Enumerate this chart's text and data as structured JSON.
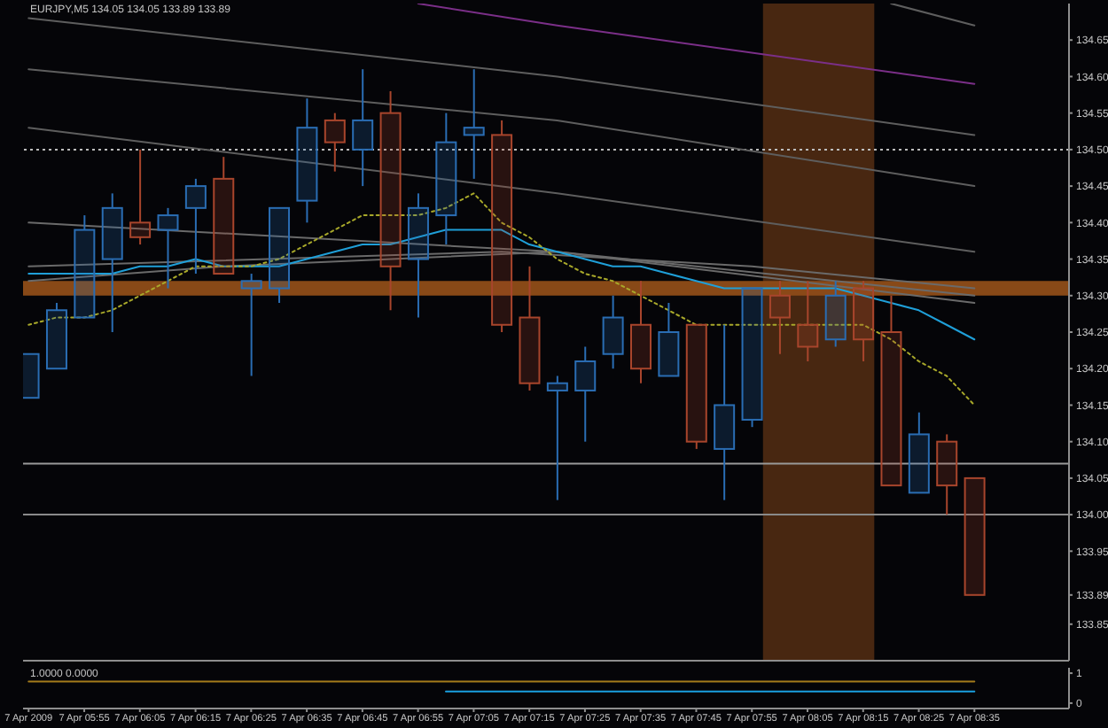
{
  "chart_data": [
    {
      "type": "candlestick",
      "title": "EURJPY,M5 134.05 134.05 133.89 133.89",
      "x": [
        "2009-04-07T05:45",
        "2009-04-07T05:50",
        "2009-04-07T05:55",
        "2009-04-07T06:00",
        "2009-04-07T06:05",
        "2009-04-07T06:10",
        "2009-04-07T06:15",
        "2009-04-07T06:20",
        "2009-04-07T06:25",
        "2009-04-07T06:30",
        "2009-04-07T06:35",
        "2009-04-07T06:40",
        "2009-04-07T06:45",
        "2009-04-07T06:50",
        "2009-04-07T06:55",
        "2009-04-07T07:00",
        "2009-04-07T07:05",
        "2009-04-07T07:10",
        "2009-04-07T07:15",
        "2009-04-07T07:20",
        "2009-04-07T07:25",
        "2009-04-07T07:30",
        "2009-04-07T07:35",
        "2009-04-07T07:40",
        "2009-04-07T07:45",
        "2009-04-07T07:50",
        "2009-04-07T07:55",
        "2009-04-07T08:00",
        "2009-04-07T08:05",
        "2009-04-07T08:10",
        "2009-04-07T08:15",
        "2009-04-07T08:20",
        "2009-04-07T08:25",
        "2009-04-07T08:30",
        "2009-04-07T08:35"
      ],
      "ohlc": [
        [
          134.16,
          134.22,
          134.16,
          134.22
        ],
        [
          134.2,
          134.29,
          134.2,
          134.28
        ],
        [
          134.27,
          134.41,
          134.27,
          134.39
        ],
        [
          134.35,
          134.44,
          134.25,
          134.42
        ],
        [
          134.4,
          134.5,
          134.37,
          134.38
        ],
        [
          134.39,
          134.42,
          134.31,
          134.41
        ],
        [
          134.42,
          134.46,
          134.33,
          134.45
        ],
        [
          134.46,
          134.49,
          134.33,
          134.33
        ],
        [
          134.31,
          134.33,
          134.19,
          134.32
        ],
        [
          134.31,
          134.42,
          134.29,
          134.42
        ],
        [
          134.43,
          134.57,
          134.4,
          134.53
        ],
        [
          134.54,
          134.55,
          134.47,
          134.51
        ],
        [
          134.5,
          134.61,
          134.45,
          134.54
        ],
        [
          134.55,
          134.58,
          134.28,
          134.34
        ],
        [
          134.35,
          134.44,
          134.27,
          134.42
        ],
        [
          134.41,
          134.55,
          134.37,
          134.51
        ],
        [
          134.52,
          134.61,
          134.46,
          134.53
        ],
        [
          134.52,
          134.54,
          134.25,
          134.26
        ],
        [
          134.27,
          134.34,
          134.17,
          134.18
        ],
        [
          134.17,
          134.19,
          134.02,
          134.18
        ],
        [
          134.17,
          134.23,
          134.1,
          134.21
        ],
        [
          134.22,
          134.3,
          134.2,
          134.27
        ],
        [
          134.26,
          134.32,
          134.18,
          134.2
        ],
        [
          134.19,
          134.29,
          134.19,
          134.25
        ],
        [
          134.26,
          134.26,
          134.09,
          134.1
        ],
        [
          134.09,
          134.26,
          134.02,
          134.15
        ],
        [
          134.13,
          134.31,
          134.12,
          134.31
        ],
        [
          134.3,
          134.32,
          134.22,
          134.27
        ],
        [
          134.26,
          134.32,
          134.21,
          134.23
        ],
        [
          134.24,
          134.32,
          134.23,
          134.3
        ],
        [
          134.31,
          134.32,
          134.21,
          134.24
        ],
        [
          134.25,
          134.3,
          134.04,
          134.04
        ],
        [
          134.03,
          134.14,
          134.03,
          134.11
        ],
        [
          134.1,
          134.11,
          134,
          134.04
        ],
        [
          134.05,
          134.05,
          133.89,
          133.89
        ]
      ],
      "colors": [
        "#2a6db3",
        "#2a6db3",
        "#2a6db3",
        "#2a6db3",
        "#a8452c",
        "#2a6db3",
        "#2a6db3",
        "#a8452c",
        "#2a6db3",
        "#2a6db3",
        "#2a6db3",
        "#a8452c",
        "#2a6db3",
        "#a8452c",
        "#2a6db3",
        "#2a6db3",
        "#2a6db3",
        "#a8452c",
        "#a8452c",
        "#2a6db3",
        "#2a6db3",
        "#2a6db3",
        "#a8452c",
        "#2a6db3",
        "#a8452c",
        "#2a6db3",
        "#2a6db3",
        "#a8452c",
        "#a8452c",
        "#2a6db3",
        "#a8452c",
        "#a8452c",
        "#2a6db3",
        "#a8452c",
        "#a8452c"
      ],
      "series": [
        {
          "type": "line",
          "color": "#5e5e5e",
          "x": [
            "2009-04-07T05:45",
            "2009-04-07T07:20",
            "2009-04-07T08:35"
          ],
          "values": [
            134.68,
            134.6,
            134.52
          ]
        },
        {
          "type": "line",
          "color": "#5e5e5e",
          "x": [
            "2009-04-07T05:45",
            "2009-04-07T07:20",
            "2009-04-07T08:35"
          ],
          "values": [
            134.61,
            134.54,
            134.45
          ]
        },
        {
          "type": "line",
          "color": "#5e5e5e",
          "x": [
            "2009-04-07T05:45",
            "2009-04-07T07:20",
            "2009-04-07T08:35"
          ],
          "values": [
            134.53,
            134.44,
            134.36
          ]
        },
        {
          "type": "line",
          "color": "#7b2f88",
          "x": [
            "2009-04-07T06:55",
            "2009-04-07T07:20",
            "2009-04-07T08:35"
          ],
          "values": [
            134.7,
            134.67,
            134.59
          ]
        },
        {
          "type": "line",
          "color": "#5e5e5e",
          "x": [
            "2009-04-07T08:20",
            "2009-04-07T08:35"
          ],
          "values": [
            134.7,
            134.67
          ]
        },
        {
          "type": "line",
          "color": "#6a6a6a",
          "x": [
            "2009-04-07T05:45",
            "2009-04-07T07:20",
            "2009-04-07T08:35"
          ],
          "values": [
            134.4,
            134.36,
            134.29
          ]
        },
        {
          "type": "line",
          "color": "#6a6a6a",
          "x": [
            "2009-04-07T05:45",
            "2009-04-07T07:10",
            "2009-04-07T07:55",
            "2009-04-07T08:35"
          ],
          "values": [
            134.34,
            134.36,
            134.34,
            134.31
          ]
        },
        {
          "type": "line",
          "color": "#6a6a6a",
          "x": [
            "2009-04-07T05:45",
            "2009-04-07T06:20",
            "2009-04-07T07:20",
            "2009-04-07T08:35"
          ],
          "values": [
            134.32,
            134.34,
            134.36,
            134.3
          ]
        },
        {
          "type": "line",
          "color": "#1f9fd8",
          "values": [
            134.33,
            134.33,
            134.33,
            134.33,
            134.34,
            134.34,
            134.35,
            134.34,
            134.34,
            134.34,
            134.35,
            134.36,
            134.37,
            134.37,
            134.38,
            134.39,
            134.39,
            134.39,
            134.37,
            134.36,
            134.35,
            134.34,
            134.34,
            134.33,
            134.32,
            134.31,
            134.31,
            134.31,
            134.31,
            134.31,
            134.3,
            134.29,
            134.28,
            134.26,
            134.24
          ]
        },
        {
          "type": "line",
          "color": "#a8a82a",
          "line_style": "dotted",
          "values": [
            134.26,
            134.27,
            134.27,
            134.28,
            134.3,
            134.32,
            134.34,
            134.34,
            134.34,
            134.35,
            134.37,
            134.39,
            134.41,
            134.41,
            134.41,
            134.42,
            134.44,
            134.4,
            134.38,
            134.35,
            134.33,
            134.32,
            134.3,
            134.28,
            134.26,
            134.26,
            134.26,
            134.26,
            134.26,
            134.26,
            134.26,
            134.24,
            134.21,
            134.19,
            134.15
          ]
        }
      ],
      "xlim": [
        "2009-04-07T05:44",
        "2009-04-07T08:52"
      ],
      "ylim": [
        133.8,
        134.7
      ],
      "yticks": [
        {
          "value": 134.65,
          "label": "134.65"
        },
        {
          "value": 134.6,
          "label": "134.60"
        },
        {
          "value": 134.55,
          "label": "134.55"
        },
        {
          "value": 134.5,
          "label": "134.50"
        },
        {
          "value": 134.45,
          "label": "134.45"
        },
        {
          "value": 134.4,
          "label": "134.40"
        },
        {
          "value": 134.35,
          "label": "134.35"
        },
        {
          "value": 134.3,
          "label": "134.30"
        },
        {
          "value": 134.25,
          "label": "134.25"
        },
        {
          "value": 134.2,
          "label": "134.20"
        },
        {
          "value": 134.15,
          "label": "134.15"
        },
        {
          "value": 134.1,
          "label": "134.10"
        },
        {
          "value": 134.05,
          "label": "134.05"
        },
        {
          "value": 134,
          "label": "134.00"
        },
        {
          "value": 133.95,
          "label": "133.95"
        },
        {
          "value": 133.89,
          "label": "133.89"
        },
        {
          "value": 133.85,
          "label": "133.85"
        }
      ],
      "ref_lines": [
        {
          "axis": "y",
          "value": 134.5,
          "color": "#bdbdbd",
          "line_style": "dotted"
        },
        {
          "axis": "y",
          "value": 134.07,
          "color": "#9a9a9a",
          "line_style": "solid"
        },
        {
          "axis": "y",
          "value": 134,
          "color": "#8a8a8a",
          "line_style": "solid"
        }
      ],
      "bands": [
        {
          "axis": "y",
          "from": 134.3,
          "to": 134.32,
          "color": "#b4601c"
        },
        {
          "axis": "x",
          "from": "2009-04-07T07:57",
          "to": "2009-04-07T08:17",
          "color": "#8c4a1a"
        }
      ],
      "tick_labels": "y"
    },
    {
      "type": "line",
      "title": "1.0000 0.0000",
      "x": [
        "2009-04-07T05:45",
        "2009-04-07T05:50",
        "2009-04-07T05:55",
        "2009-04-07T06:00",
        "2009-04-07T06:05",
        "2009-04-07T06:10",
        "2009-04-07T06:15",
        "2009-04-07T06:20",
        "2009-04-07T06:25",
        "2009-04-07T06:30",
        "2009-04-07T06:35",
        "2009-04-07T06:40",
        "2009-04-07T06:45",
        "2009-04-07T06:50",
        "2009-04-07T06:55",
        "2009-04-07T07:00",
        "2009-04-07T07:05",
        "2009-04-07T07:10",
        "2009-04-07T07:15",
        "2009-04-07T07:20",
        "2009-04-07T07:25",
        "2009-04-07T07:30",
        "2009-04-07T07:35",
        "2009-04-07T07:40",
        "2009-04-07T07:45",
        "2009-04-07T07:50",
        "2009-04-07T07:55",
        "2009-04-07T08:00",
        "2009-04-07T08:05",
        "2009-04-07T08:10",
        "2009-04-07T08:15",
        "2009-04-07T08:20",
        "2009-04-07T08:25",
        "2009-04-07T08:30",
        "2009-04-07T08:35"
      ],
      "series": [
        {
          "color": "#a57c1b",
          "values": [
            0.72,
            0.72,
            0.72,
            0.72,
            0.72,
            0.72,
            0.72,
            0.72,
            0.72,
            0.72,
            0.72,
            0.72,
            0.72,
            0.72,
            0.72,
            0.72,
            0.72,
            0.72,
            0.72,
            0.72,
            0.72,
            0.72,
            0.72,
            0.72,
            0.72,
            0.72,
            0.72,
            0.72,
            0.72,
            0.72,
            0.72,
            0.72,
            0.72,
            0.72,
            0.72
          ]
        },
        {
          "color": "#1aa0e0",
          "values": [
            null,
            null,
            null,
            null,
            null,
            null,
            null,
            null,
            null,
            null,
            null,
            null,
            null,
            null,
            null,
            0.39,
            0.39,
            0.39,
            0.39,
            0.39,
            0.39,
            0.39,
            0.39,
            0.39,
            0.39,
            0.39,
            0.39,
            0.39,
            0.39,
            0.39,
            0.39,
            0.39,
            0.39,
            0.39,
            0.39
          ]
        }
      ],
      "xlim": [
        "2009-04-07T05:44",
        "2009-04-07T08:52"
      ],
      "xticks": [
        {
          "value": "2009-04-07T05:45",
          "label": "7 Apr 2009"
        },
        {
          "value": "2009-04-07T05:55",
          "label": "7 Apr 05:55"
        },
        {
          "value": "2009-04-07T06:05",
          "label": "7 Apr 06:05"
        },
        {
          "value": "2009-04-07T06:15",
          "label": "7 Apr 06:15"
        },
        {
          "value": "2009-04-07T06:25",
          "label": "7 Apr 06:25"
        },
        {
          "value": "2009-04-07T06:35",
          "label": "7 Apr 06:35"
        },
        {
          "value": "2009-04-07T06:45",
          "label": "7 Apr 06:45"
        },
        {
          "value": "2009-04-07T06:55",
          "label": "7 Apr 06:55"
        },
        {
          "value": "2009-04-07T07:05",
          "label": "7 Apr 07:05"
        },
        {
          "value": "2009-04-07T07:15",
          "label": "7 Apr 07:15"
        },
        {
          "value": "2009-04-07T07:25",
          "label": "7 Apr 07:25"
        },
        {
          "value": "2009-04-07T07:35",
          "label": "7 Apr 07:35"
        },
        {
          "value": "2009-04-07T07:45",
          "label": "7 Apr 07:45"
        },
        {
          "value": "2009-04-07T07:55",
          "label": "7 Apr 07:55"
        },
        {
          "value": "2009-04-07T08:05",
          "label": "7 Apr 08:05"
        },
        {
          "value": "2009-04-07T08:15",
          "label": "7 Apr 08:15"
        },
        {
          "value": "2009-04-07T08:25",
          "label": "7 Apr 08:25"
        },
        {
          "value": "2009-04-07T08:35",
          "label": "7 Apr 08:35"
        }
      ],
      "ylim": [
        -0.18,
        1.18
      ],
      "yticks": [
        0,
        1
      ]
    }
  ]
}
